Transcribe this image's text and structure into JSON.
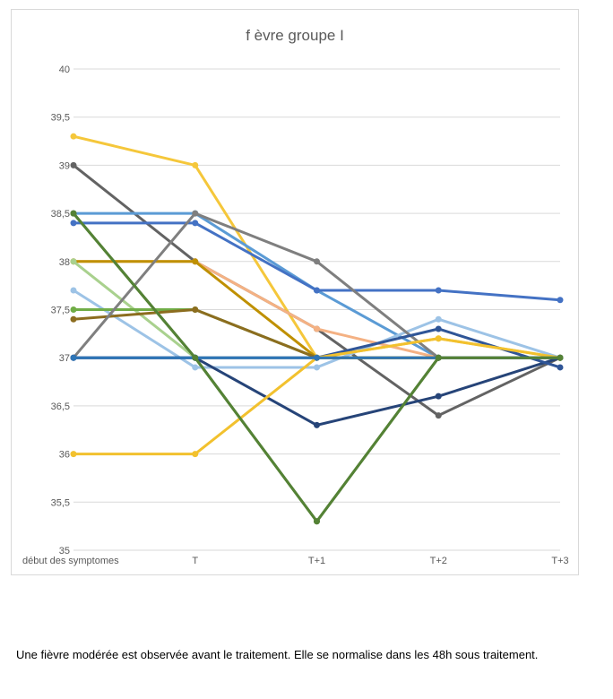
{
  "caption": "Une fièvre modérée est observée avant le traitement. Elle se normalise dans les 48h sous traitement.",
  "chart_data": {
    "type": "line",
    "title": "f èvre groupe I",
    "categories": [
      "début des symptomes",
      "T",
      "T+1",
      "T+2",
      "T+3"
    ],
    "ylim": [
      35,
      40
    ],
    "yticks": [
      "35",
      "35,5",
      "36",
      "36,5",
      "37",
      "37,5",
      "38",
      "38,5",
      "39",
      "39,5",
      "40"
    ],
    "grid": true,
    "legend": "none",
    "series": [
      {
        "color": "#F5C73B",
        "values": [
          39.3,
          39.0,
          37.0,
          37.2,
          37.0
        ]
      },
      {
        "color": "#636363",
        "values": [
          39.0,
          38.0,
          37.3,
          36.4,
          37.0
        ]
      },
      {
        "color": "#5B9BD5",
        "values": [
          38.5,
          38.5,
          37.7,
          37.0,
          37.0
        ]
      },
      {
        "color": "#538135",
        "values": [
          38.5,
          37.0,
          35.3,
          37.0,
          37.0
        ]
      },
      {
        "color": "#4472C4",
        "values": [
          38.4,
          38.4,
          37.7,
          37.7,
          37.6
        ]
      },
      {
        "color": "#F4B183",
        "values": [
          38.0,
          38.0,
          37.3,
          37.0,
          37.0
        ]
      },
      {
        "color": "#BF9000",
        "values": [
          38.0,
          38.0,
          37.0,
          37.0,
          37.0
        ]
      },
      {
        "color": "#A9D18E",
        "values": [
          38.0,
          37.0,
          37.0,
          37.0,
          37.0
        ]
      },
      {
        "color": "#9DC3E6",
        "values": [
          37.7,
          36.9,
          36.9,
          37.4,
          37.0
        ]
      },
      {
        "color": "#70AD47",
        "values": [
          37.5,
          37.5,
          37.0,
          37.0,
          37.0
        ]
      },
      {
        "color": "#8C6D1F",
        "values": [
          37.4,
          37.5,
          37.0,
          37.0,
          37.0
        ]
      },
      {
        "color": "#7F7F7F",
        "values": [
          37.0,
          38.5,
          38.0,
          37.0,
          37.0
        ]
      },
      {
        "color": "#264478",
        "values": [
          37.0,
          37.0,
          36.3,
          36.6,
          37.0
        ]
      },
      {
        "color": "#2F5597",
        "values": [
          37.0,
          37.0,
          37.0,
          37.3,
          36.9
        ]
      },
      {
        "color": "#F2C12E",
        "values": [
          36.0,
          36.0,
          37.0,
          37.2,
          37.0
        ]
      },
      {
        "color": "#2E75B6",
        "values": [
          37.0,
          37.0,
          37.0,
          37.0,
          37.0
        ]
      },
      {
        "color": "#548235",
        "values": [
          38.5,
          37.0,
          35.3,
          37.0,
          37.0
        ]
      }
    ]
  }
}
